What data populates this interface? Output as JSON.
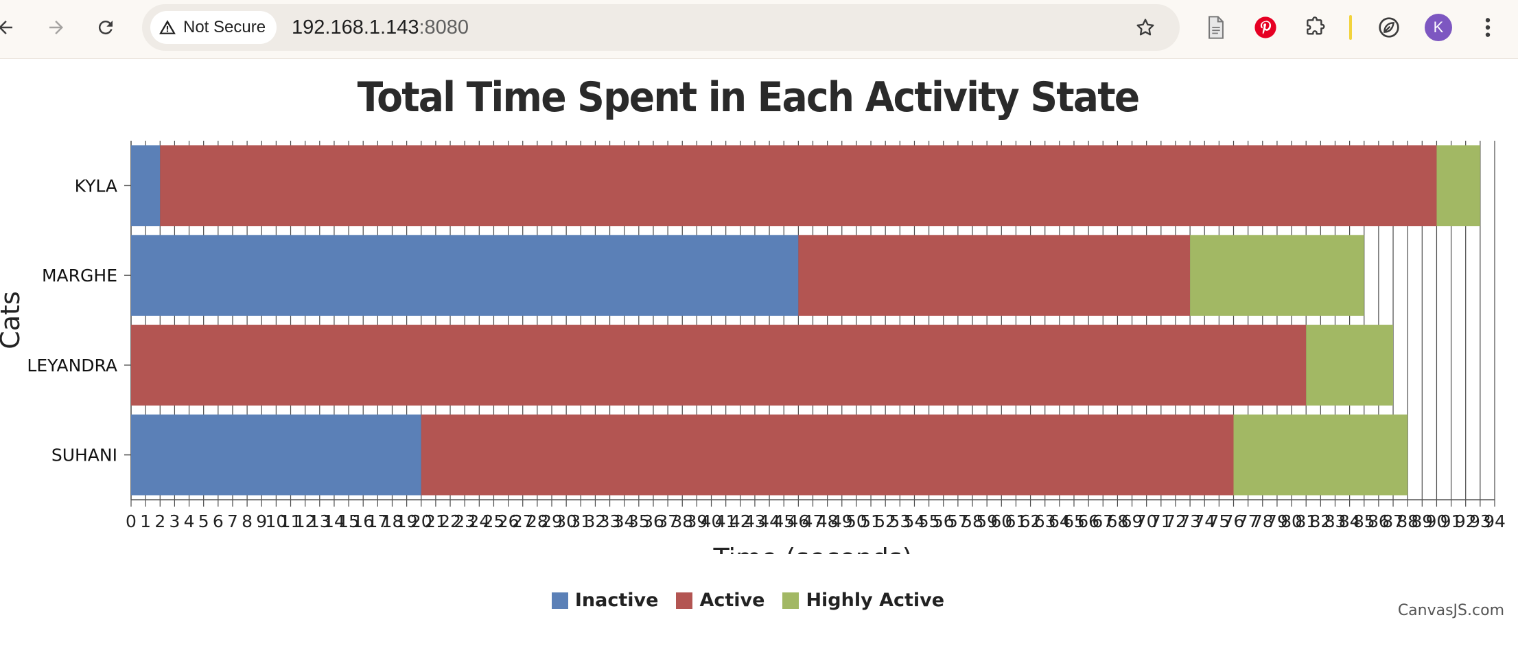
{
  "browser": {
    "security_label": "Not Secure",
    "url_host": "192.168.1.143",
    "url_port": ":8080",
    "avatar_letter": "K",
    "icons": [
      "back-arrow-icon",
      "forward-arrow-icon",
      "reload-icon",
      "warning-icon",
      "star-icon",
      "document-icon",
      "pinterest-icon",
      "puzzle-extension-icon",
      "leaf-extension-icon",
      "more-vert-icon"
    ]
  },
  "credit": "CanvasJS.com",
  "chart_data": {
    "type": "bar",
    "stacked": true,
    "orientation": "horizontal",
    "title": "Total Time Spent in Each Activity State",
    "xlabel": "Time (seconds)",
    "ylabel": "Cats",
    "xlim": [
      0,
      94
    ],
    "x_interval": 1,
    "grid": true,
    "legend_position": "bottom",
    "categories": [
      "KYLA",
      "MARGHE",
      "LEYANDRA",
      "SUHANI"
    ],
    "series": [
      {
        "name": "Inactive",
        "color": "#5b80b7",
        "values": [
          2,
          46,
          0,
          20
        ]
      },
      {
        "name": "Active",
        "color": "#b35552",
        "values": [
          88,
          27,
          81,
          56
        ]
      },
      {
        "name": "Highly Active",
        "color": "#a2b864",
        "values": [
          3,
          12,
          6,
          12
        ]
      }
    ]
  }
}
